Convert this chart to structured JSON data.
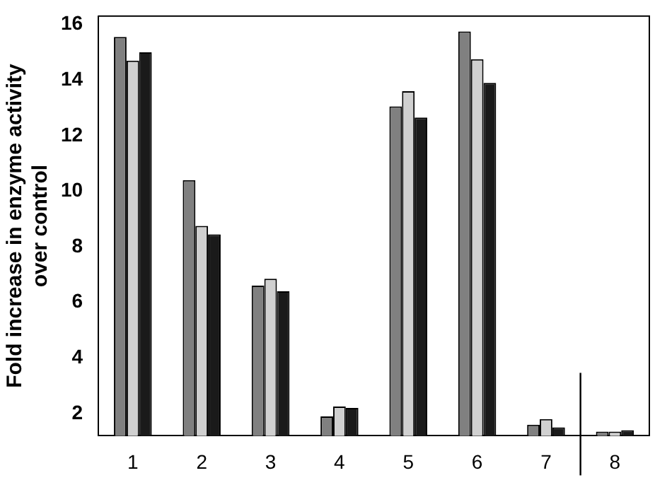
{
  "chart_data": {
    "type": "bar",
    "ylabel": "Fold increase in enzyme activity\nover control",
    "x": [
      1,
      2,
      3,
      4,
      5,
      6,
      7,
      8
    ],
    "series": [
      {
        "color": "#808080",
        "values": [
          15.55,
          10.4,
          6.6,
          1.9,
          13.05,
          15.75,
          1.6,
          1.35
        ]
      },
      {
        "color": "#d0d0d0",
        "values": [
          14.7,
          8.75,
          6.85,
          2.25,
          13.6,
          14.75,
          1.8,
          1.35
        ]
      },
      {
        "color": "#1a1a1a",
        "values": [
          15.0,
          8.45,
          6.4,
          2.2,
          12.65,
          13.9,
          1.5,
          1.4
        ]
      }
    ],
    "xlim": [
      0.5,
      8.5
    ],
    "xticks": [
      1,
      2,
      3,
      4,
      5,
      6,
      7,
      8
    ],
    "ylim": [
      1.2,
      16.3
    ],
    "yticks": [
      2,
      4,
      6,
      8,
      10,
      12,
      14,
      16
    ],
    "ref_lines": [
      {
        "axis": "x",
        "value": 7.5,
        "color": "#000000"
      }
    ],
    "grid": false,
    "legend": false
  }
}
